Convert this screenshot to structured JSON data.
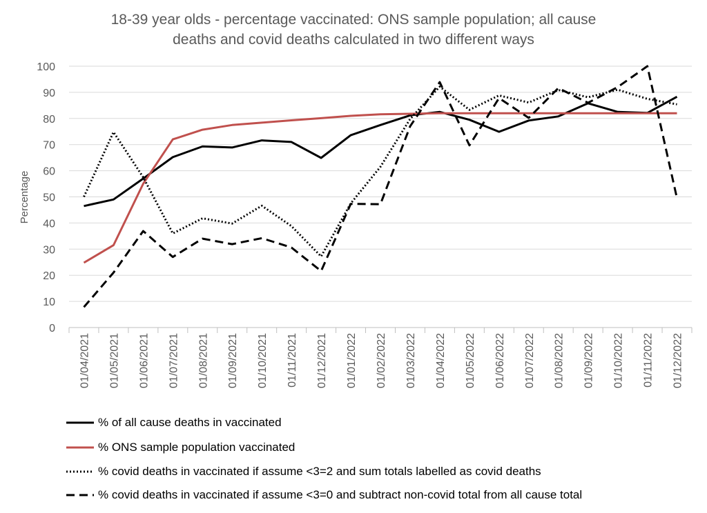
{
  "chart_data": {
    "type": "line",
    "title_line1": "18-39 year olds - percentage vaccinated: ONS sample population; all cause",
    "title_line2": "deaths and covid deaths calculated in two different ways",
    "xlabel": "",
    "ylabel": "Percentage",
    "ylim": [
      0,
      100
    ],
    "y_ticks": [
      0,
      10,
      20,
      30,
      40,
      50,
      60,
      70,
      80,
      90,
      100
    ],
    "grid": true,
    "legend_position": "bottom",
    "categories": [
      "01/04/2021",
      "01/05/2021",
      "01/06/2021",
      "01/07/2021",
      "01/08/2021",
      "01/09/2021",
      "01/10/2021",
      "01/11/2021",
      "01/12/2021",
      "01/01/2022",
      "01/02/2022",
      "01/03/2022",
      "01/04/2022",
      "01/05/2022",
      "01/06/2022",
      "01/07/2022",
      "01/08/2022",
      "01/09/2022",
      "01/10/2022",
      "01/11/2022",
      "01/12/2022"
    ],
    "series": [
      {
        "name": "% of all cause deaths in vaccinated",
        "color": "#000000",
        "dash": "solid",
        "values": [
          46.5,
          49,
          57,
          65.2,
          69.3,
          68.9,
          71.6,
          71,
          64.9,
          73.6,
          77.5,
          81.2,
          82.5,
          79.5,
          74.9,
          79.2,
          80.8,
          85.8,
          82.5,
          82.1,
          88.3
        ]
      },
      {
        "name": "% ONS sample population vaccinated",
        "color": "#C0504D",
        "dash": "solid",
        "values": [
          24.8,
          31.5,
          55,
          72,
          75.7,
          77.5,
          78.4,
          79.3,
          80.1,
          81,
          81.6,
          81.8,
          82,
          82,
          82,
          82,
          82,
          82,
          82,
          82,
          82
        ]
      },
      {
        "name": "% covid deaths in vaccinated if assume <3=2 and sum totals labelled as covid deaths",
        "color": "#000000",
        "dash": "dotted",
        "values": [
          50,
          74.8,
          57.5,
          36,
          41.8,
          39.8,
          46.6,
          38.8,
          27.2,
          47.5,
          61.5,
          79.8,
          92.2,
          83.3,
          88.8,
          86.1,
          90.9,
          88.1,
          91,
          87.5,
          85.4
        ]
      },
      {
        "name": "% covid deaths in vaccinated if assume <3=0 and subtract non-covid total from all cause total",
        "color": "#000000",
        "dash": "dashed",
        "values": [
          7.8,
          21,
          36.9,
          27,
          34,
          31.9,
          34.2,
          30.6,
          21.6,
          47.3,
          47.2,
          77,
          93.9,
          69.7,
          87.8,
          80.2,
          91.6,
          86,
          92,
          100,
          49.5
        ]
      }
    ]
  }
}
